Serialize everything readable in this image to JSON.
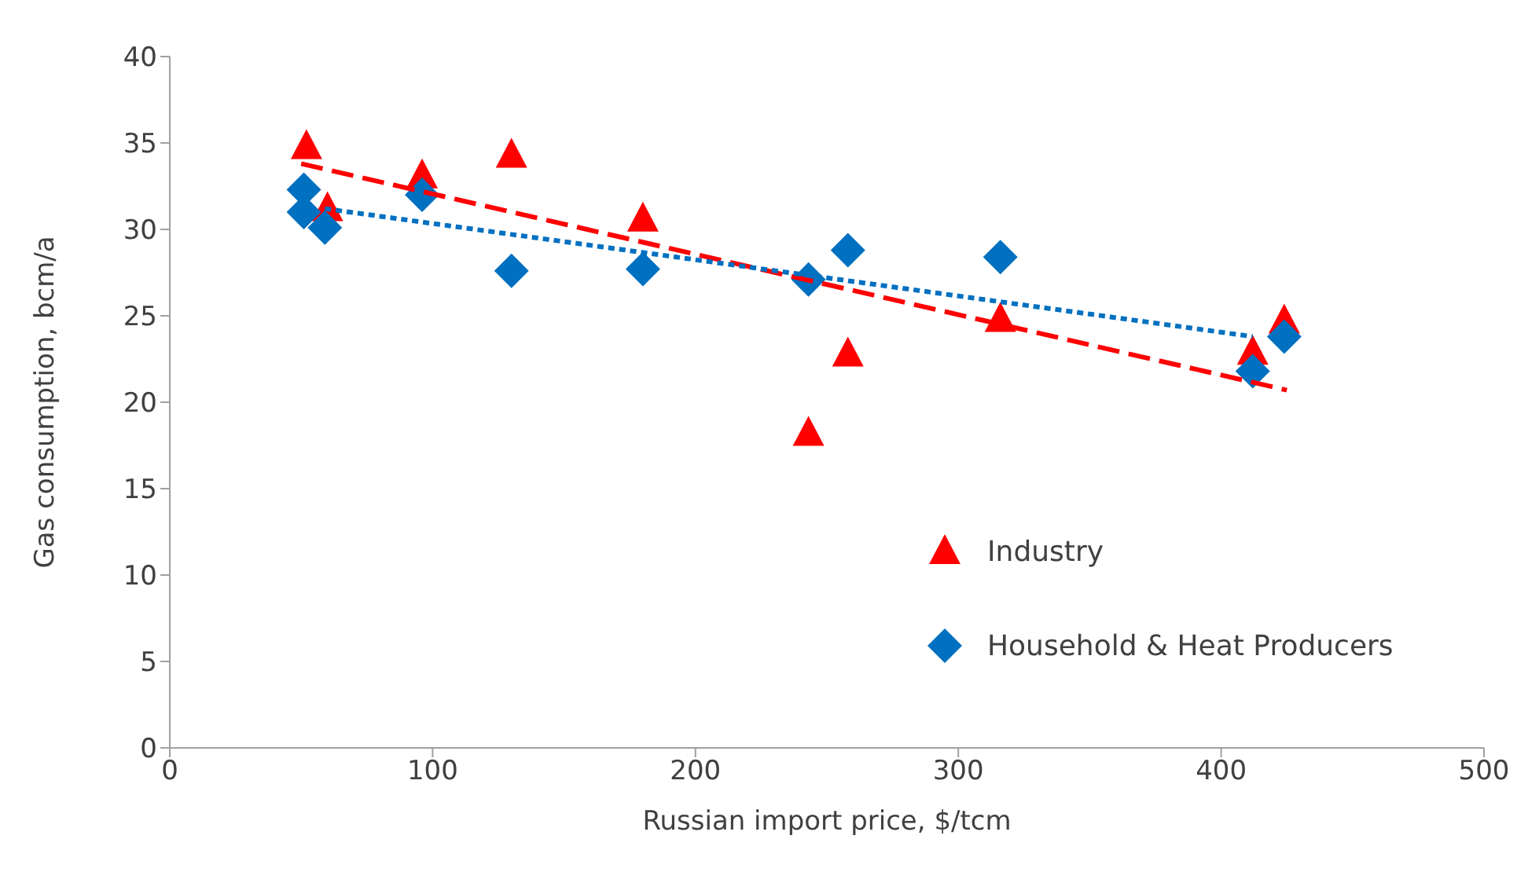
{
  "chart_data": {
    "type": "scatter",
    "xlabel": "Russian import price, $/tcm",
    "ylabel": "Gas consumption, bcm/a",
    "xlim": [
      0,
      500
    ],
    "xticks": [
      0,
      100,
      200,
      300,
      400,
      500
    ],
    "ylim": [
      0,
      40
    ],
    "yticks": [
      0,
      5,
      10,
      15,
      20,
      25,
      30,
      35,
      40
    ],
    "grid": false,
    "legend": "right",
    "series": [
      {
        "name": "Industry",
        "color": "#ff0000",
        "marker": "triangle",
        "x": [
          52,
          60,
          96,
          130,
          180,
          243,
          258,
          316,
          412,
          424
        ],
        "values": [
          34.8,
          31.2,
          33.1,
          34.3,
          30.6,
          18.2,
          22.8,
          24.8,
          22.9,
          24.7
        ]
      },
      {
        "name": "Household & Heat Producers",
        "color": "#0070c0",
        "marker": "diamond",
        "x": [
          51,
          51,
          59,
          96,
          130,
          180,
          243,
          258,
          316,
          412,
          424
        ],
        "values": [
          32.3,
          31.0,
          30.1,
          32.0,
          27.6,
          27.7,
          27.1,
          28.8,
          28.4,
          21.8,
          23.8
        ]
      },
      {
        "type": "line",
        "color": "#ff0000",
        "marker": "none",
        "line_style": "dashed",
        "x": [
          50,
          425
        ],
        "values": [
          33.8,
          20.7
        ]
      },
      {
        "type": "line",
        "color": "#0070c0",
        "marker": "none",
        "line_style": "dotted",
        "x": [
          59,
          412
        ],
        "values": [
          31.2,
          23.8
        ]
      }
    ]
  }
}
